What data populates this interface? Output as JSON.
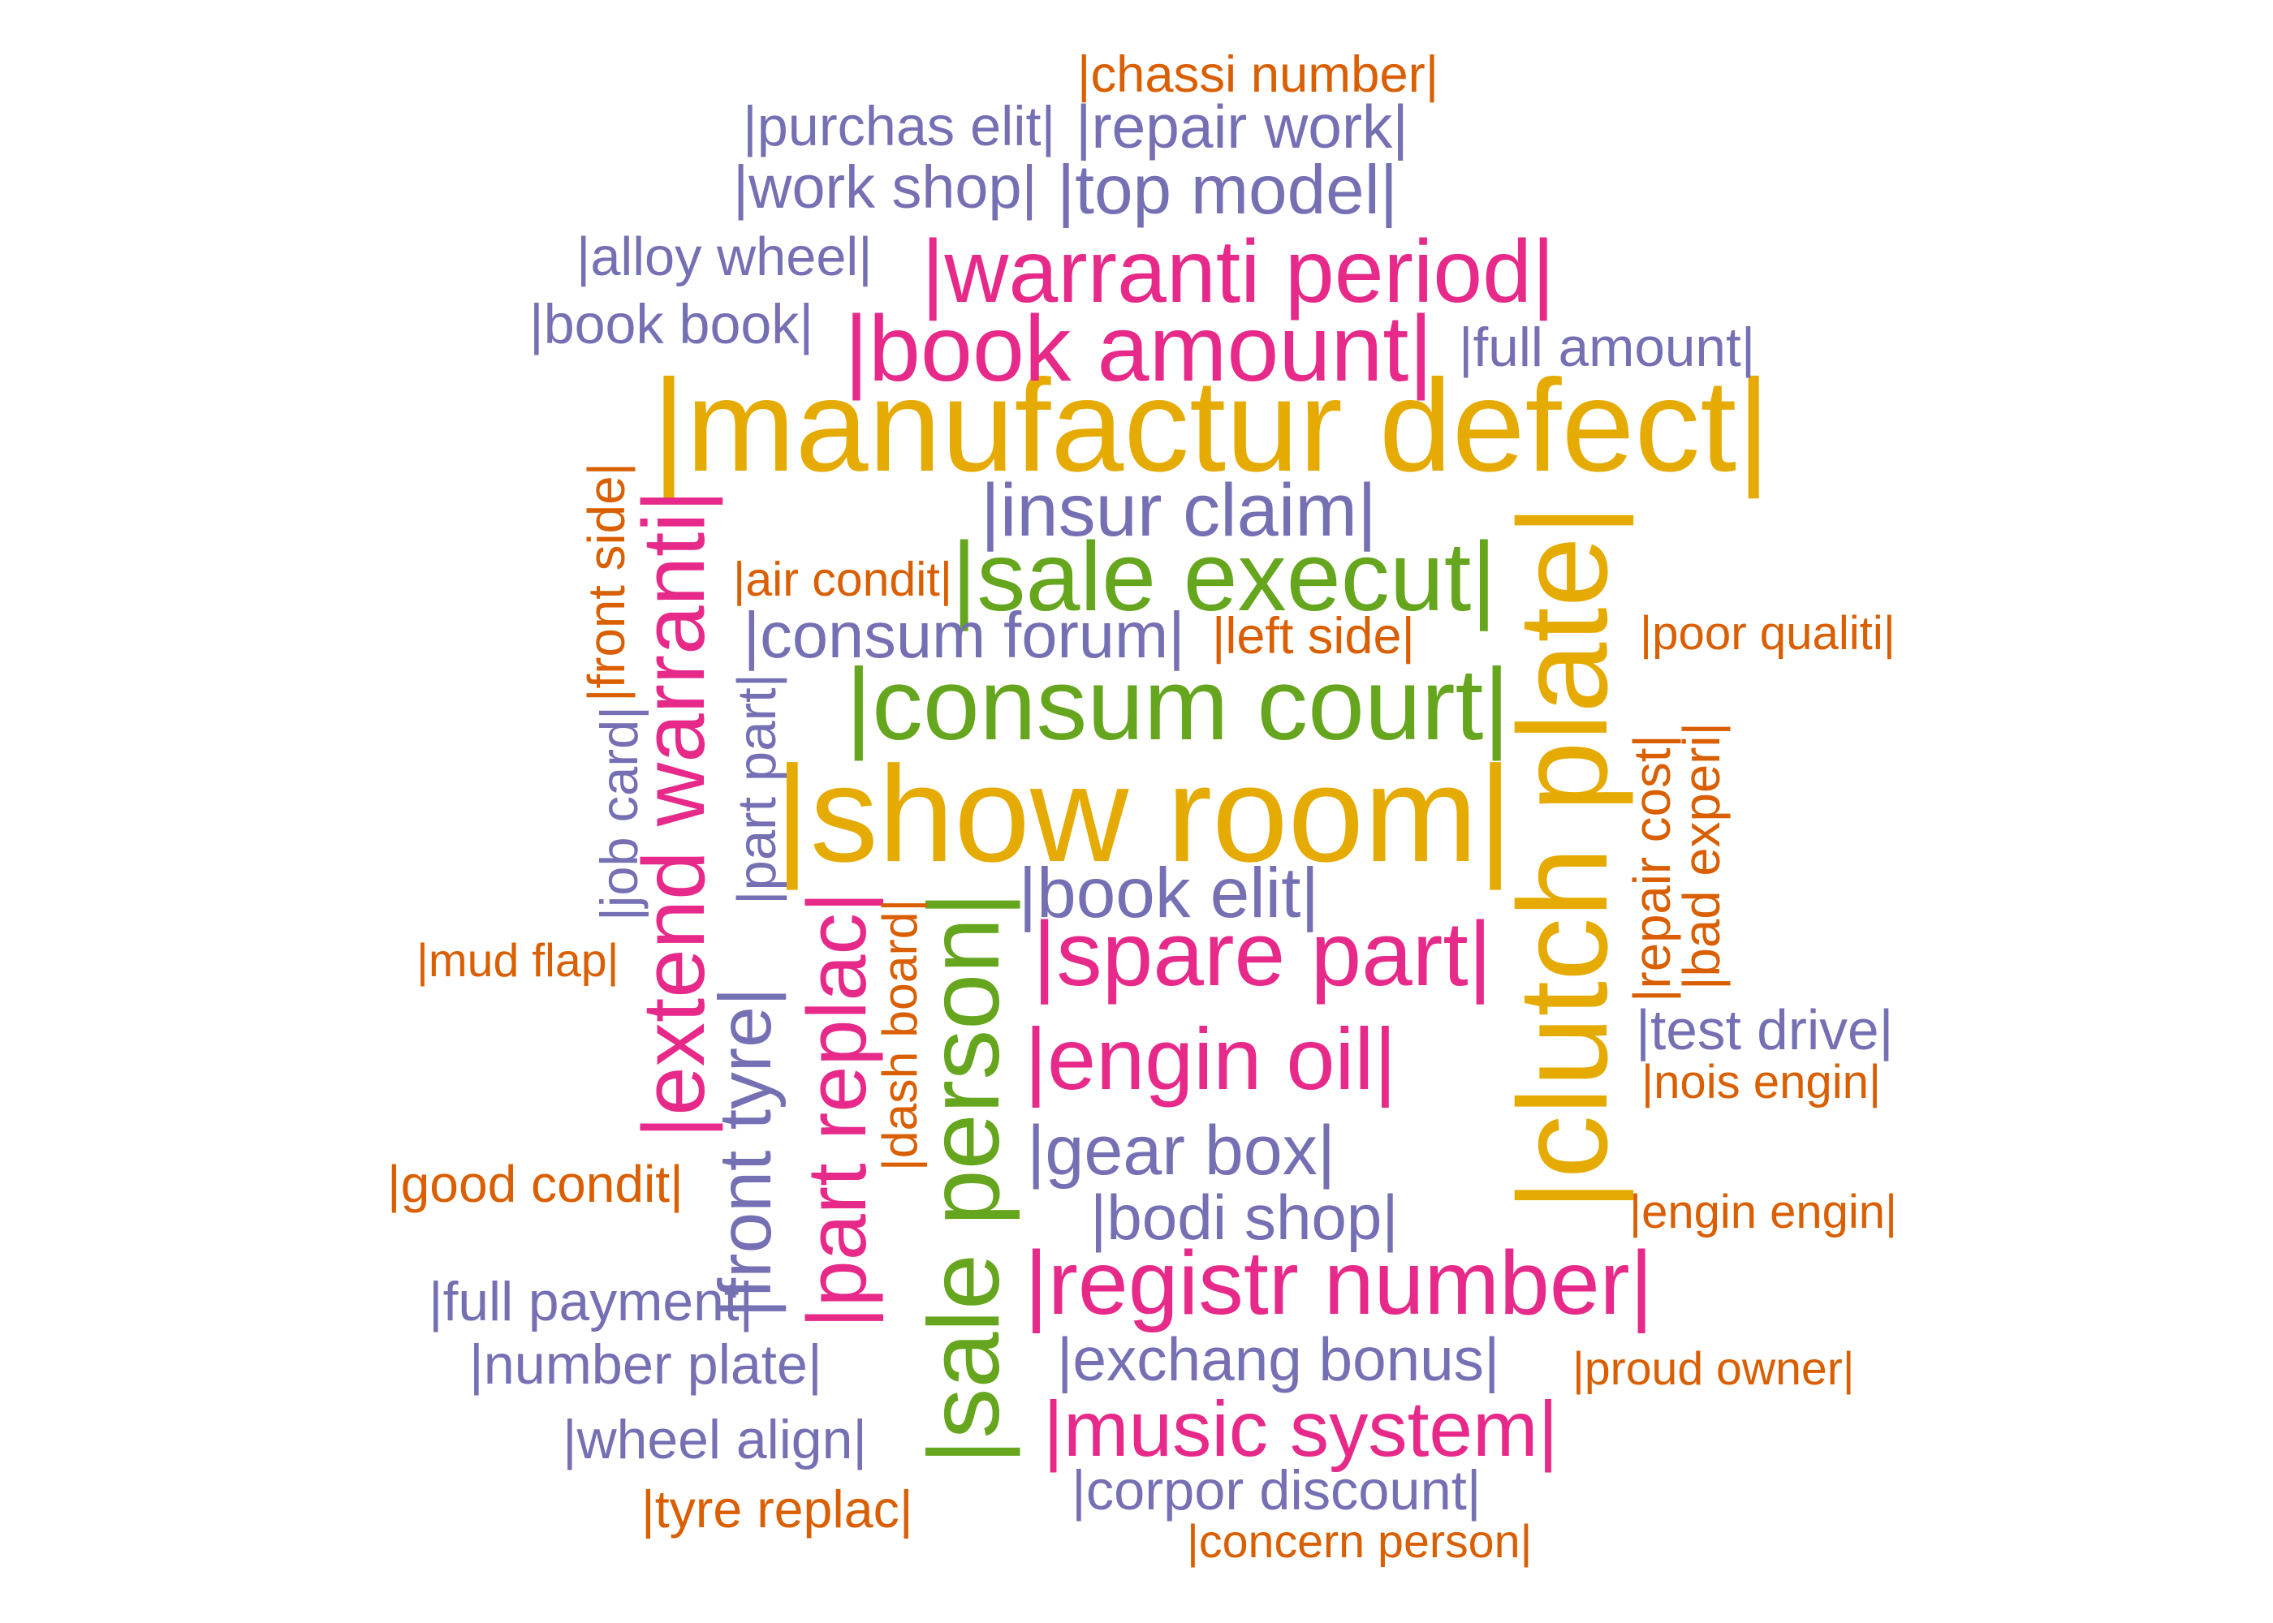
{
  "colors": {
    "gold": "#e6ab02",
    "magenta": "#e7298a",
    "green": "#66a61e",
    "purple": "#7570b3",
    "orange": "#d95f02"
  },
  "words": [
    {
      "id": "manufactur-defect",
      "text": "|manufactur defect|",
      "color": "gold"
    },
    {
      "id": "show-room",
      "text": "|show room|",
      "color": "gold"
    },
    {
      "id": "clutch-plate",
      "text": "|clutch plate|",
      "color": "gold",
      "vertical": true
    },
    {
      "id": "consum-court",
      "text": "|consum court|",
      "color": "green"
    },
    {
      "id": "sale-execut",
      "text": "|sale execut|",
      "color": "green"
    },
    {
      "id": "sale-person",
      "text": "|sale person|",
      "color": "green",
      "vertical": true
    },
    {
      "id": "warranti-period",
      "text": "|warranti period|",
      "color": "magenta"
    },
    {
      "id": "book-amount",
      "text": "|book amount|",
      "color": "magenta"
    },
    {
      "id": "extend-warranti",
      "text": "|extend warranti|",
      "color": "magenta",
      "vertical": true
    },
    {
      "id": "spare-part",
      "text": "|spare part|",
      "color": "magenta"
    },
    {
      "id": "engin-oil",
      "text": "|engin oil|",
      "color": "magenta"
    },
    {
      "id": "registr-number",
      "text": "|registr number|",
      "color": "magenta"
    },
    {
      "id": "music-system",
      "text": "|music system|",
      "color": "magenta"
    },
    {
      "id": "part-replac",
      "text": "|part replac|",
      "color": "magenta",
      "vertical": true
    },
    {
      "id": "insur-claim",
      "text": "|insur claim|",
      "color": "purple"
    },
    {
      "id": "top-model",
      "text": "|top model|",
      "color": "purple"
    },
    {
      "id": "consum-forum",
      "text": "|consum forum|",
      "color": "purple"
    },
    {
      "id": "book-elit",
      "text": "|book elit|",
      "color": "purple"
    },
    {
      "id": "gear-box",
      "text": "|gear box|",
      "color": "purple"
    },
    {
      "id": "bodi-shop",
      "text": "|bodi shop|",
      "color": "purple"
    },
    {
      "id": "front-tyre",
      "text": "|front tyre|",
      "color": "purple",
      "vertical": true
    },
    {
      "id": "purchas-elit",
      "text": "|purchas elit|",
      "color": "purple"
    },
    {
      "id": "repair-work",
      "text": "|repair work|",
      "color": "purple"
    },
    {
      "id": "work-shop",
      "text": "|work shop|",
      "color": "purple"
    },
    {
      "id": "alloy-wheel",
      "text": "|alloy wheel|",
      "color": "purple"
    },
    {
      "id": "book-book",
      "text": "|book book|",
      "color": "purple"
    },
    {
      "id": "full-amount",
      "text": "|full amount|",
      "color": "purple"
    },
    {
      "id": "job-card",
      "text": "|job card|",
      "color": "purple",
      "vertical": true
    },
    {
      "id": "part-part",
      "text": "|part part|",
      "color": "purple",
      "vertical": true
    },
    {
      "id": "test-drive",
      "text": "|test drive|",
      "color": "purple"
    },
    {
      "id": "full-payment",
      "text": "|full payment|",
      "color": "purple"
    },
    {
      "id": "number-plate",
      "text": "|number plate|",
      "color": "purple"
    },
    {
      "id": "exchang-bonus",
      "text": "|exchang bonus|",
      "color": "purple"
    },
    {
      "id": "wheel-align",
      "text": "|wheel align|",
      "color": "purple"
    },
    {
      "id": "corpor-discount",
      "text": "|corpor discount|",
      "color": "purple"
    },
    {
      "id": "chassi-number",
      "text": "|chassi number|",
      "color": "orange"
    },
    {
      "id": "front-side",
      "text": "|front side|",
      "color": "orange",
      "vertical": true
    },
    {
      "id": "air-condit",
      "text": "|air condit|",
      "color": "orange"
    },
    {
      "id": "left-side",
      "text": "|left side|",
      "color": "orange"
    },
    {
      "id": "poor-qualiti",
      "text": "|poor qualiti|",
      "color": "orange"
    },
    {
      "id": "repair-cost",
      "text": "|repair cost|",
      "color": "orange",
      "vertical": true
    },
    {
      "id": "bad-experi",
      "text": "|bad experi|",
      "color": "orange",
      "vertical": true
    },
    {
      "id": "mud-flap",
      "text": "|mud flap|",
      "color": "orange"
    },
    {
      "id": "dash-board",
      "text": "|dash board|",
      "color": "orange",
      "vertical": true
    },
    {
      "id": "nois-engin",
      "text": "|nois engin|",
      "color": "orange"
    },
    {
      "id": "good-condit",
      "text": "|good condit|",
      "color": "orange"
    },
    {
      "id": "engin-engin",
      "text": "|engin engin|",
      "color": "orange"
    },
    {
      "id": "proud-owner",
      "text": "|proud owner|",
      "color": "orange"
    },
    {
      "id": "tyre-replac",
      "text": "|tyre replac|",
      "color": "orange"
    },
    {
      "id": "concern-person",
      "text": "|concern person|",
      "color": "orange"
    }
  ]
}
